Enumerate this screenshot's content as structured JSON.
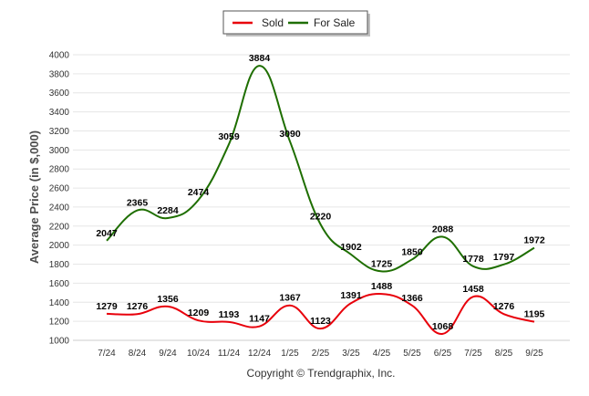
{
  "chart_data": {
    "type": "line",
    "title": "",
    "xlabel": "",
    "ylabel": "Average Price (in $,000)",
    "ylim": [
      1000,
      4000
    ],
    "yticks": [
      1000,
      1200,
      1400,
      1600,
      1800,
      2000,
      2200,
      2400,
      2600,
      2800,
      3000,
      3200,
      3400,
      3600,
      3800,
      4000
    ],
    "categories": [
      "7/24",
      "8/24",
      "9/24",
      "10/24",
      "11/24",
      "12/24",
      "1/25",
      "2/25",
      "3/25",
      "4/25",
      "5/25",
      "6/25",
      "7/25",
      "8/25",
      "9/25"
    ],
    "series": [
      {
        "name": "Sold",
        "color": "#e8000b",
        "values": [
          1279,
          1276,
          1356,
          1209,
          1193,
          1147,
          1367,
          1123,
          1391,
          1488,
          1366,
          1068,
          1458,
          1276,
          1195
        ]
      },
      {
        "name": "For Sale",
        "color": "#1e6e00",
        "values": [
          2047,
          2365,
          2284,
          2474,
          3059,
          3884,
          3090,
          2220,
          1902,
          1725,
          1850,
          2088,
          1778,
          1797,
          1972
        ]
      }
    ],
    "legend_position": "top-center",
    "grid": true,
    "credit": "Copyright © Trendgraphix, Inc."
  }
}
